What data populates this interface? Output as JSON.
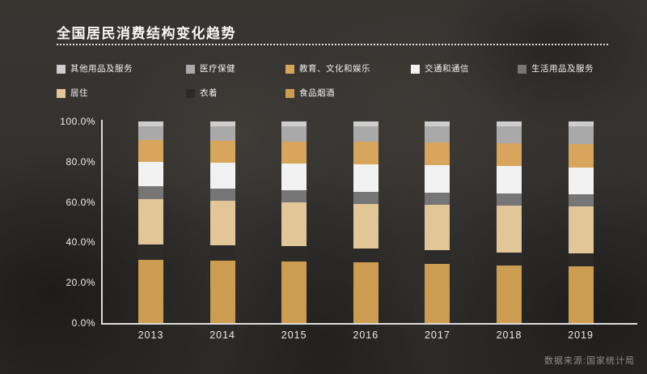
{
  "title": "全国居民消费结构变化趋势",
  "source_note": "数据来源:国家统计局",
  "background_color": "#343230",
  "accent_colors": {
    "axis": "#dcdcdc",
    "text": "#f2f2f2",
    "source_text": "#8d8d8d"
  },
  "legend_items": [
    {
      "label": "其他用品及服务",
      "color": "#cdcdcd",
      "row": 0
    },
    {
      "label": "医疗保健",
      "color": "#a9a9a9",
      "row": 0
    },
    {
      "label": "教育、文化和娱乐",
      "color": "#d8a55c",
      "row": 0
    },
    {
      "label": "交通和通信",
      "color": "#f2f2f2",
      "row": 0
    },
    {
      "label": "生活用品及服务",
      "color": "#767676",
      "row": 0
    },
    {
      "label": "居住",
      "color": "#e2c698",
      "row": 1
    },
    {
      "label": "衣着",
      "color": "#2c2b29",
      "row": 1
    },
    {
      "label": "食品烟酒",
      "color": "#cc9c50",
      "row": 1
    }
  ],
  "chart_data": {
    "type": "bar",
    "stacked": true,
    "stack_order": "bottom_to_top",
    "title": "全国居民消费结构变化趋势",
    "categories": [
      "2013",
      "2014",
      "2015",
      "2016",
      "2017",
      "2018",
      "2019"
    ],
    "series": [
      {
        "name": "食品烟酒",
        "color": "#cc9c50",
        "values": [
          31.2,
          31.0,
          30.6,
          30.1,
          29.3,
          28.4,
          28.2
        ]
      },
      {
        "name": "衣着",
        "color": "#2c2b29",
        "values": [
          7.8,
          7.6,
          7.4,
          7.0,
          6.8,
          6.5,
          6.2
        ]
      },
      {
        "name": "居住",
        "color": "#e2c698",
        "values": [
          22.7,
          22.1,
          21.8,
          21.9,
          22.4,
          23.4,
          23.4
        ]
      },
      {
        "name": "生活用品及服务",
        "color": "#767676",
        "values": [
          6.1,
          6.1,
          6.1,
          6.1,
          6.1,
          6.2,
          5.9
        ]
      },
      {
        "name": "交通和通信",
        "color": "#f2f2f2",
        "values": [
          12.3,
          12.9,
          13.3,
          13.7,
          13.6,
          13.5,
          13.3
        ]
      },
      {
        "name": "教育、文化和娱乐",
        "color": "#d8a55c",
        "values": [
          10.6,
          10.6,
          11.0,
          11.2,
          11.4,
          11.2,
          11.7
        ]
      },
      {
        "name": "医疗保健",
        "color": "#a9a9a9",
        "values": [
          6.9,
          7.2,
          7.4,
          7.6,
          7.9,
          8.5,
          8.8
        ]
      },
      {
        "name": "其他用品及服务",
        "color": "#cdcdcd",
        "values": [
          2.5,
          2.5,
          2.5,
          2.4,
          2.4,
          2.4,
          2.4
        ]
      }
    ],
    "y_ticks_top_to_bottom": [
      "100.0%",
      "80.0%",
      "60.0%",
      "40.0%",
      "20.0%",
      "0.0%"
    ],
    "ylim": [
      0,
      100
    ],
    "unit": "percent_share",
    "grid": false,
    "legend_position": "top",
    "legend_rows": [
      [
        "其他用品及服务",
        "医疗保健",
        "教育、文化和娱乐",
        "交通和通信",
        "生活用品及服务"
      ],
      [
        "居住",
        "衣着",
        "食品烟酒"
      ]
    ]
  }
}
